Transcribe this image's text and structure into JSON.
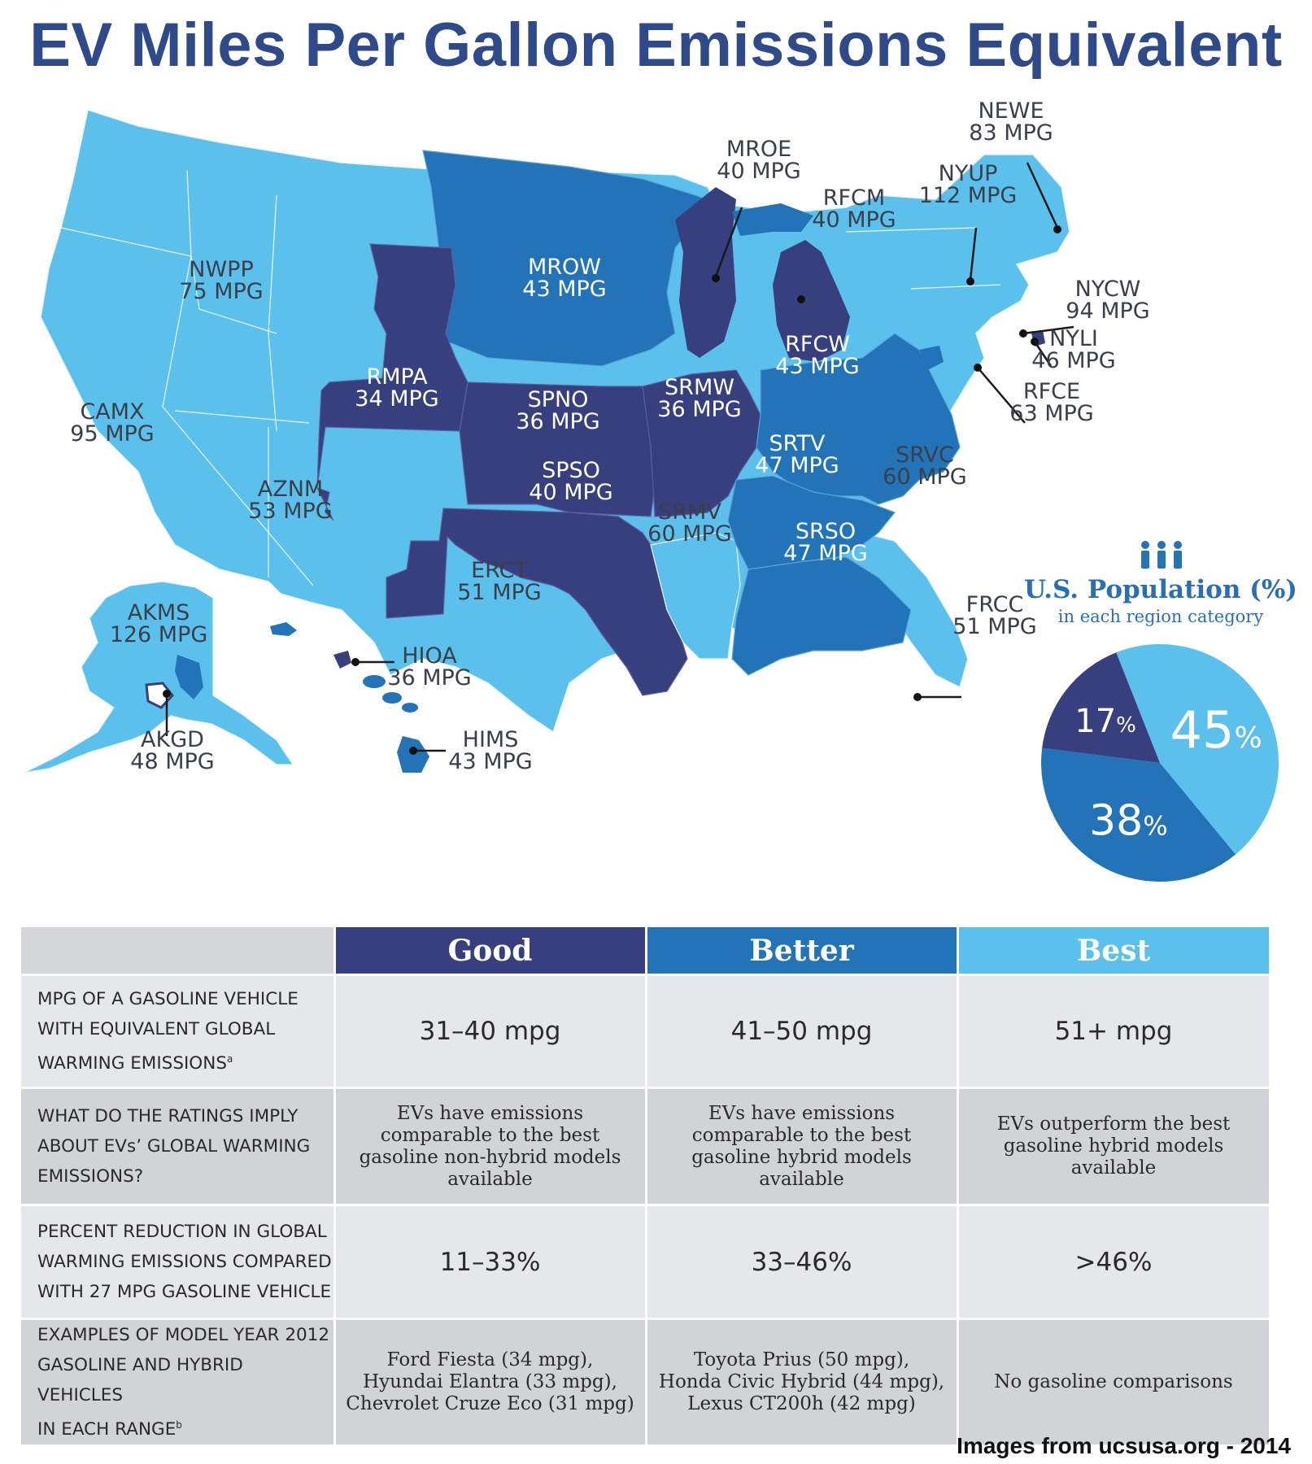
{
  "title": "EV Miles Per Gallon Emissions Equivalent",
  "colors": {
    "good": "#373f7e",
    "better": "#2273b8",
    "best": "#5bc1ec",
    "title": "#2f4a8a"
  },
  "regions": {
    "newe": {
      "name": "NEWE",
      "mpg": "83 MPG"
    },
    "mroe": {
      "name": "MROE",
      "mpg": "40 MPG"
    },
    "nyup": {
      "name": "NYUP",
      "mpg": "112 MPG"
    },
    "rfcm": {
      "name": "RFCM",
      "mpg": "40 MPG"
    },
    "nwpp": {
      "name": "NWPP",
      "mpg": "75 MPG"
    },
    "mrow": {
      "name": "MROW",
      "mpg": "43 MPG"
    },
    "nycw": {
      "name": "NYCW",
      "mpg": "94 MPG"
    },
    "nyli": {
      "name": "NYLI",
      "mpg": "46 MPG"
    },
    "rfcw": {
      "name": "RFCW",
      "mpg": "43 MPG"
    },
    "rmpa": {
      "name": "RMPA",
      "mpg": "34 MPG"
    },
    "srmw": {
      "name": "SRMW",
      "mpg": "36 MPG"
    },
    "rfce": {
      "name": "RFCE",
      "mpg": "63 MPG"
    },
    "camx": {
      "name": "CAMX",
      "mpg": "95 MPG"
    },
    "spno": {
      "name": "SPNO",
      "mpg": "36 MPG"
    },
    "srtv": {
      "name": "SRTV",
      "mpg": "47 MPG"
    },
    "srvc": {
      "name": "SRVC",
      "mpg": "60 MPG"
    },
    "aznm": {
      "name": "AZNM",
      "mpg": "53 MPG"
    },
    "spso": {
      "name": "SPSO",
      "mpg": "40 MPG"
    },
    "srmv": {
      "name": "SRMV",
      "mpg": "60 MPG"
    },
    "srso": {
      "name": "SRSO",
      "mpg": "47 MPG"
    },
    "erct": {
      "name": "ERCT",
      "mpg": "51 MPG"
    },
    "akms": {
      "name": "AKMS",
      "mpg": "126 MPG"
    },
    "frcc": {
      "name": "FRCC",
      "mpg": "51 MPG"
    },
    "hioa": {
      "name": "HIOA",
      "mpg": "36 MPG"
    },
    "akgd": {
      "name": "AKGD",
      "mpg": "48 MPG"
    },
    "hims": {
      "name": "HIMS",
      "mpg": "43 MPG"
    }
  },
  "population": {
    "title": "U.S. Population (%)",
    "subtitle": "in each region category",
    "icon": "people-icon",
    "slices": [
      {
        "category": "Best",
        "value": 45,
        "label": "45",
        "unit": "%",
        "color": "#5bc1ec"
      },
      {
        "category": "Better",
        "value": 38,
        "label": "38",
        "unit": "%",
        "color": "#2273b8"
      },
      {
        "category": "Good",
        "value": 17,
        "label": "17",
        "unit": "%",
        "color": "#373f7e"
      }
    ]
  },
  "table": {
    "headers": [
      "",
      "Good",
      "Better",
      "Best"
    ],
    "rows": [
      {
        "label": [
          "MPG OF A GASOLINE VEHICLE",
          "WITH EQUIVALENT GLOBAL",
          "WARMING EMISSIONS"
        ],
        "footnote": "a",
        "cells": [
          "31–40 mpg",
          "41–50 mpg",
          "51+ mpg"
        ]
      },
      {
        "label": [
          "WHAT DO THE RATINGS IMPLY",
          "ABOUT EVs’ GLOBAL WARMING",
          "EMISSIONS?"
        ],
        "cells": [
          [
            "EVs have emissions",
            "comparable to the best",
            "gasoline non-hybrid models",
            "available"
          ],
          [
            "EVs have emissions",
            "comparable to the best",
            "gasoline hybrid models",
            "available"
          ],
          [
            "EVs outperform the best",
            "gasoline hybrid models",
            "available"
          ]
        ]
      },
      {
        "label": [
          "PERCENT REDUCTION IN GLOBAL",
          "WARMING EMISSIONS COMPARED",
          "WITH 27 MPG GASOLINE VEHICLE"
        ],
        "cells": [
          "11–33%",
          "33–46%",
          ">46%"
        ]
      },
      {
        "label": [
          "EXAMPLES OF MODEL YEAR 2012",
          "GASOLINE AND HYBRID VEHICLES",
          "IN EACH RANGE"
        ],
        "footnote": "b",
        "cells": [
          [
            "Ford Fiesta (34 mpg),",
            "Hyundai Elantra (33 mpg),",
            "Chevrolet Cruze Eco (31 mpg)"
          ],
          [
            "Toyota Prius (50 mpg),",
            "Honda Civic Hybrid (44 mpg),",
            "Lexus CT200h (42 mpg)"
          ],
          [
            "No gasoline comparisons"
          ]
        ]
      }
    ]
  },
  "source": "Images from ucsusa.org - 2014"
}
